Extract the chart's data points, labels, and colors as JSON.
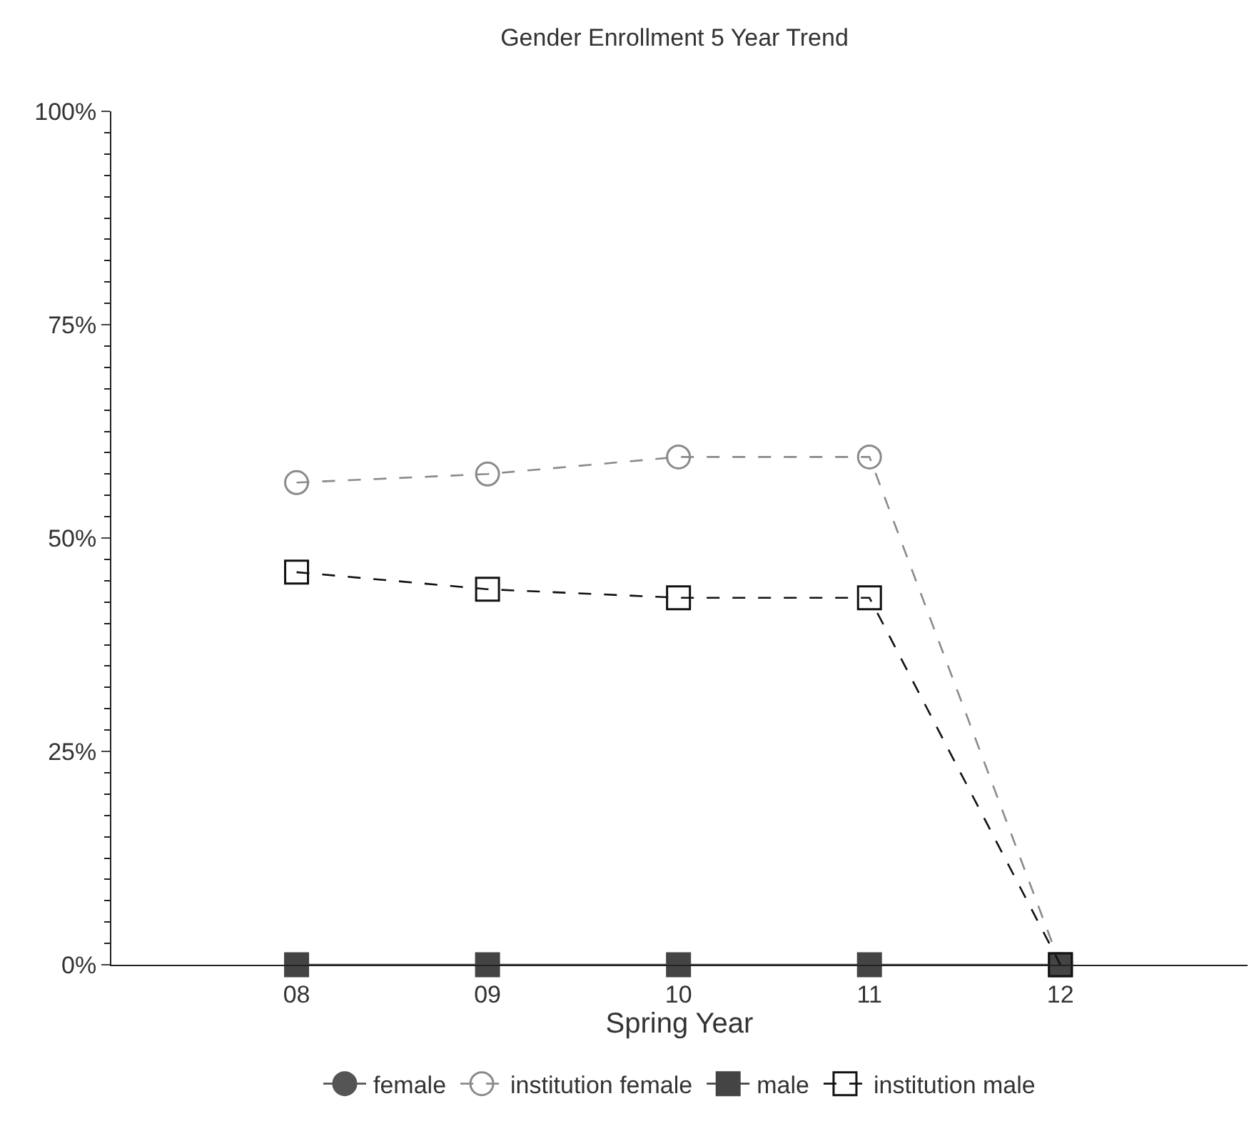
{
  "chart_data": {
    "type": "line",
    "title": "Gender Enrollment 5 Year Trend",
    "xlabel": "Spring Year",
    "categories": [
      "08",
      "09",
      "10",
      "11",
      "12"
    ],
    "ylim": [
      0,
      100
    ],
    "yticks": [
      {
        "value": 0,
        "label": "0%"
      },
      {
        "value": 25,
        "label": "25%"
      },
      {
        "value": 50,
        "label": "50%"
      },
      {
        "value": 75,
        "label": "75%"
      },
      {
        "value": 100,
        "label": "100%"
      }
    ],
    "legend": "bottom",
    "series": [
      {
        "name": "female",
        "color": "#555555",
        "marker": "circle",
        "line_style": "solid",
        "values": [
          null,
          null,
          null,
          null,
          null
        ]
      },
      {
        "name": "institution female",
        "color": "#8a8a8a",
        "marker": "circle-open",
        "line_style": "dashed",
        "values": [
          56.5,
          57.5,
          59.5,
          59.5,
          0
        ]
      },
      {
        "name": "male",
        "color": "#444444",
        "marker": "square",
        "line_style": "solid",
        "values": [
          0,
          0,
          0,
          0,
          0
        ]
      },
      {
        "name": "institution male",
        "color": "#111111",
        "marker": "square-open",
        "line_style": "dashed",
        "values": [
          46,
          44,
          43,
          43,
          0
        ]
      }
    ]
  }
}
